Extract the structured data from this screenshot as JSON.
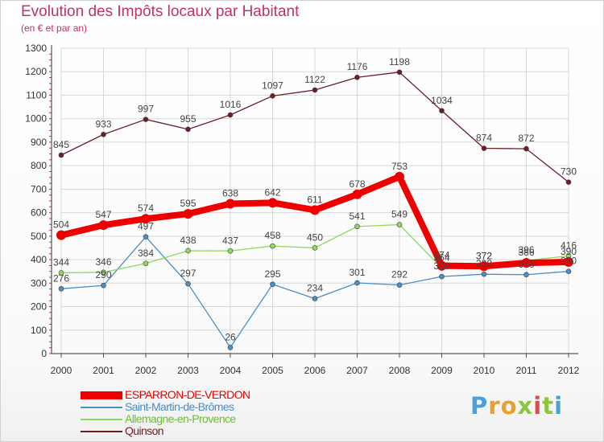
{
  "header": {
    "title": "Evolution des Impôts locaux par Habitant",
    "subtitle": "(en € et par an)"
  },
  "colors": {
    "title": "#c0306a",
    "grid": "#d8d8d8",
    "axis": "#333333"
  },
  "chart_data": {
    "type": "line",
    "title": "Evolution des Impôts locaux par Habitant",
    "subtitle": "(en € et par an)",
    "xlabel": "",
    "ylabel": "",
    "categories": [
      "2000",
      "2001",
      "2002",
      "2003",
      "2004",
      "2005",
      "2006",
      "2007",
      "2008",
      "2009",
      "2010",
      "2011",
      "2012"
    ],
    "ylim": [
      0,
      1300
    ],
    "yticks": [
      0,
      100,
      200,
      300,
      400,
      500,
      600,
      700,
      800,
      900,
      1000,
      1100,
      1200,
      1300
    ],
    "grid": true,
    "series": [
      {
        "name": "Quinson",
        "color": "#6b1f24",
        "values": [
          845,
          933,
          997,
          955,
          1016,
          1097,
          1122,
          1176,
          1198,
          1034,
          874,
          872,
          730
        ],
        "labels": [
          "845",
          "933",
          "997",
          "955",
          "1016",
          "1097",
          "1122",
          "1176",
          "1198",
          "1034",
          "874",
          "872",
          "730"
        ]
      },
      {
        "name": "Saint-Martin-de-Brômes",
        "color": "#4a8ec8",
        "values": [
          276,
          290,
          497,
          297,
          26,
          295,
          234,
          301,
          292,
          328,
          338,
          336,
          350
        ],
        "labels": [
          "276",
          "290",
          "497",
          "297",
          "26",
          "295",
          "234",
          "301",
          "292",
          "328",
          "338",
          "336",
          "350"
        ]
      },
      {
        "name": "Allemagne-en-Provence",
        "color": "#8ed85a",
        "values": [
          344,
          346,
          384,
          438,
          437,
          458,
          450,
          541,
          549,
          364,
          372,
          396,
          416
        ],
        "labels": [
          "344",
          "346",
          "384",
          "438",
          "437",
          "458",
          "450",
          "541",
          "549",
          "364",
          "372",
          "396",
          "416"
        ]
      },
      {
        "name": "ESPARRON-DE-VERDON",
        "color": "#ee0000",
        "values": [
          504,
          547,
          574,
          595,
          638,
          642,
          611,
          678,
          753,
          374,
          372,
          386,
          390
        ],
        "labels": [
          "504",
          "547",
          "574",
          "595",
          "638",
          "642",
          "611",
          "678",
          "753",
          "374",
          "372",
          "386",
          "390"
        ]
      }
    ],
    "legend": [
      {
        "name": "ESPARRON-DE-VERDON",
        "color": "#ee0000"
      },
      {
        "name": "Saint-Martin-de-Brômes",
        "color": "#4a8ec8"
      },
      {
        "name": "Allemagne-en-Provence",
        "color": "#8ed85a"
      },
      {
        "name": "Quinson",
        "color": "#6b1f24"
      }
    ],
    "legend_position": "bottom-left"
  },
  "logo": {
    "letters": [
      {
        "ch": "P",
        "color": "#4aa0d8"
      },
      {
        "ch": "r",
        "color": "#e8a030"
      },
      {
        "ch": "o",
        "color": "#e8a030"
      },
      {
        "ch": "x",
        "color": "#8cc63f"
      },
      {
        "ch": "i",
        "color": "#e84848"
      },
      {
        "ch": "t",
        "color": "#8cc63f"
      },
      {
        "ch": "i",
        "color": "#4aa0d8"
      }
    ]
  }
}
